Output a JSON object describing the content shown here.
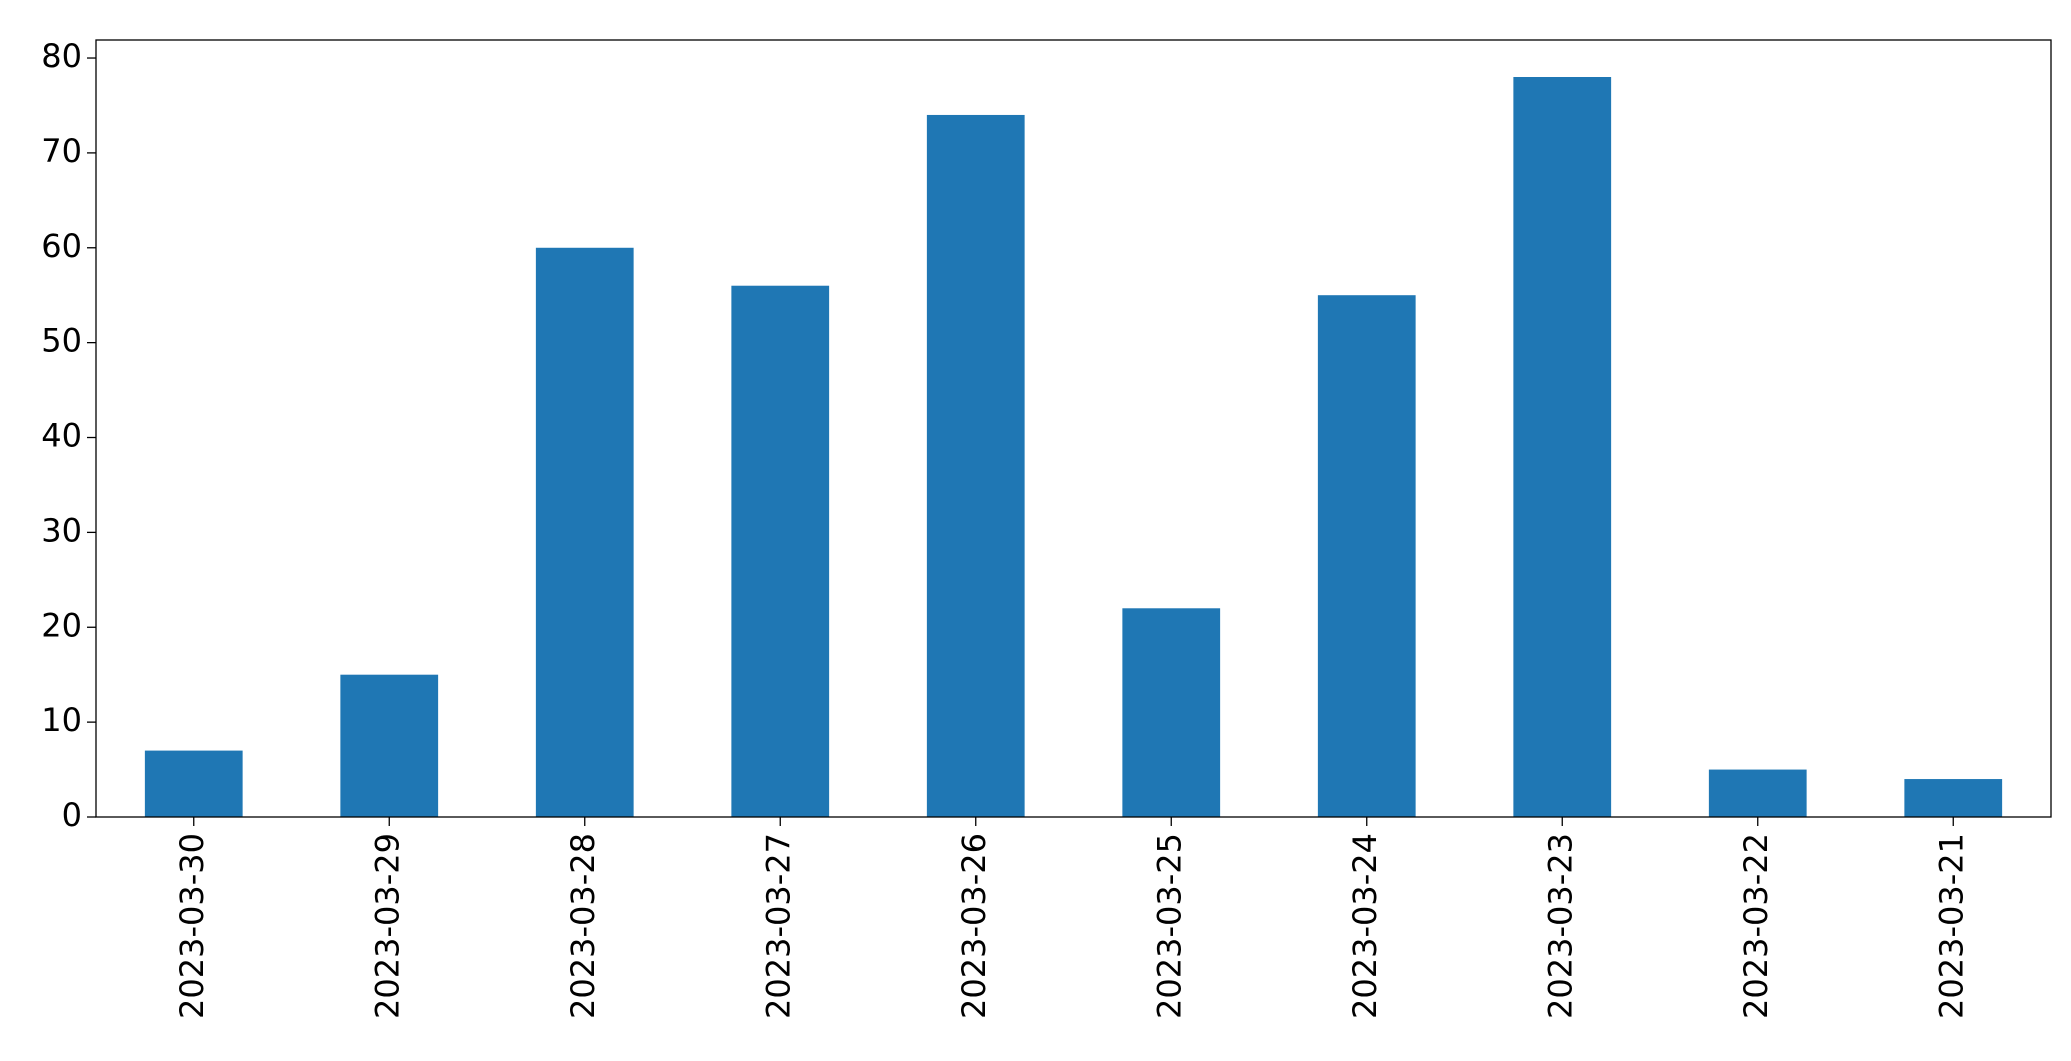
{
  "chart_data": {
    "type": "bar",
    "categories": [
      "2023-03-30",
      "2023-03-29",
      "2023-03-28",
      "2023-03-27",
      "2023-03-26",
      "2023-03-25",
      "2023-03-24",
      "2023-03-23",
      "2023-03-22",
      "2023-03-21"
    ],
    "values": [
      7,
      15,
      60,
      56,
      74,
      22,
      55,
      78,
      5,
      4
    ],
    "color": "#1f77b4",
    "ylim": [
      0,
      81.9
    ],
    "yticks": [
      0,
      10,
      20,
      30,
      40,
      50,
      60,
      70,
      80
    ],
    "grid": false
  }
}
